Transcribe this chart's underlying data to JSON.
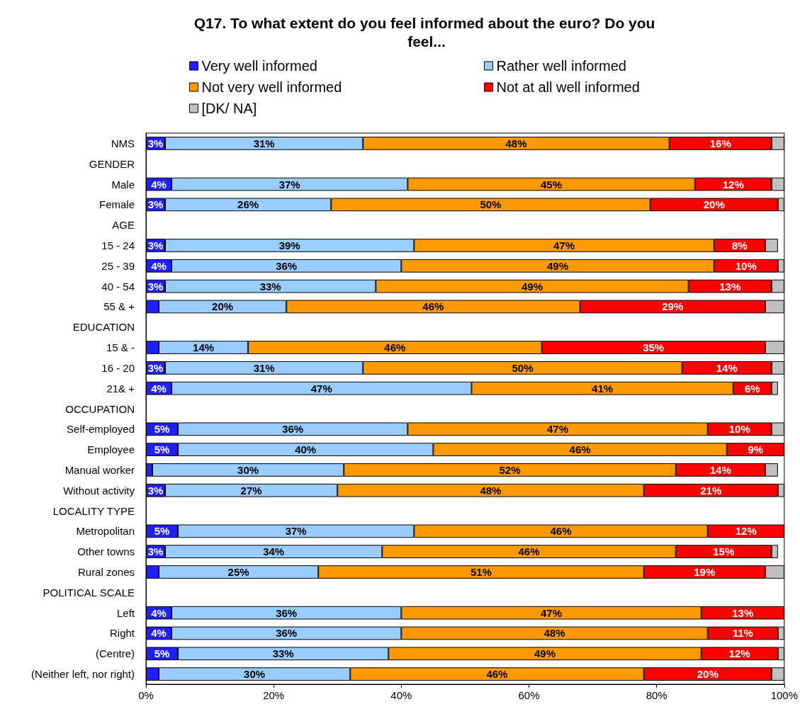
{
  "chart_data": {
    "type": "bar",
    "orientation": "horizontal",
    "stacked": true,
    "title": "Q17. To what extent do you feel informed about the euro? Do you feel...",
    "categories": [
      "NMS",
      "GENDER",
      "Male",
      "Female",
      "AGE",
      "15 - 24",
      "25 - 39",
      "40 - 54",
      "55 & +",
      "EDUCATION",
      "15 & -",
      "16 - 20",
      "21& +",
      "OCCUPATION",
      "Self-employed",
      "Employee",
      "Manual worker",
      "Without activity",
      "LOCALITY TYPE",
      "Metropolitan",
      "Other towns",
      "Rural zones",
      "POLITICAL SCALE",
      "Left",
      "Right",
      "(Centre)",
      "(Neither left, nor right)"
    ],
    "series": [
      {
        "name": "Very well informed",
        "color": "#1f1fff",
        "values": [
          3,
          null,
          4,
          3,
          null,
          3,
          4,
          3,
          2,
          null,
          2,
          3,
          4,
          null,
          5,
          5,
          1,
          3,
          null,
          5,
          3,
          2,
          null,
          4,
          4,
          5,
          2
        ],
        "value_labels": [
          "3%",
          null,
          "4%",
          "3%",
          null,
          "3%",
          "4%",
          "3%",
          null,
          null,
          null,
          "3%",
          "4%",
          null,
          "5%",
          "5%",
          null,
          "3%",
          null,
          "5%",
          "3%",
          null,
          null,
          "4%",
          "4%",
          "5%",
          null
        ]
      },
      {
        "name": "Rather well informed",
        "color": "#99ccff",
        "values": [
          31,
          null,
          37,
          26,
          null,
          39,
          36,
          33,
          20,
          null,
          14,
          31,
          47,
          null,
          36,
          40,
          30,
          27,
          null,
          37,
          34,
          25,
          null,
          36,
          36,
          33,
          30
        ],
        "value_labels": [
          "31%",
          null,
          "37%",
          "26%",
          null,
          "39%",
          "36%",
          "33%",
          "20%",
          null,
          "14%",
          "31%",
          "47%",
          null,
          "36%",
          "40%",
          "30%",
          "27%",
          null,
          "37%",
          "34%",
          "25%",
          null,
          "36%",
          "36%",
          "33%",
          "30%"
        ]
      },
      {
        "name": "Not very well informed",
        "color": "#ff9900",
        "values": [
          48,
          null,
          45,
          50,
          null,
          47,
          49,
          49,
          46,
          null,
          46,
          50,
          41,
          null,
          47,
          46,
          52,
          48,
          null,
          46,
          46,
          51,
          null,
          47,
          48,
          49,
          46
        ],
        "value_labels": [
          "48%",
          null,
          "45%",
          "50%",
          null,
          "47%",
          "49%",
          "49%",
          "46%",
          null,
          "46%",
          "50%",
          "41%",
          null,
          "47%",
          "46%",
          "52%",
          "48%",
          null,
          "46%",
          "46%",
          "51%",
          null,
          "47%",
          "48%",
          "49%",
          "46%"
        ]
      },
      {
        "name": "Not at all well informed",
        "color": "#ff0000",
        "values": [
          16,
          null,
          12,
          20,
          null,
          8,
          10,
          13,
          29,
          null,
          35,
          14,
          6,
          null,
          10,
          9,
          14,
          21,
          null,
          12,
          15,
          19,
          null,
          13,
          11,
          12,
          20
        ],
        "value_labels": [
          "16%",
          null,
          "12%",
          "20%",
          null,
          "8%",
          "10%",
          "13%",
          "29%",
          null,
          "35%",
          "14%",
          "6%",
          null,
          "10%",
          "9%",
          "14%",
          "21%",
          null,
          "12%",
          "15%",
          "19%",
          null,
          "13%",
          "11%",
          "12%",
          "20%"
        ]
      },
      {
        "name": "[DK/ NA]",
        "color": "#c0c0c0",
        "values": [
          2,
          null,
          2,
          1,
          null,
          2,
          1,
          2,
          3,
          null,
          3,
          2,
          1,
          null,
          2,
          null,
          2,
          1,
          null,
          null,
          1,
          3,
          null,
          null,
          1,
          1,
          2
        ]
      }
    ],
    "xlim": [
      0,
      100
    ],
    "xticks": [
      {
        "value": 0,
        "label": "0%"
      },
      {
        "value": 20,
        "label": "20%"
      },
      {
        "value": 40,
        "label": "40%"
      },
      {
        "value": 60,
        "label": "60%"
      },
      {
        "value": 80,
        "label": "80%"
      },
      {
        "value": 100,
        "label": "100%"
      }
    ],
    "legend": "top",
    "grid": false
  }
}
